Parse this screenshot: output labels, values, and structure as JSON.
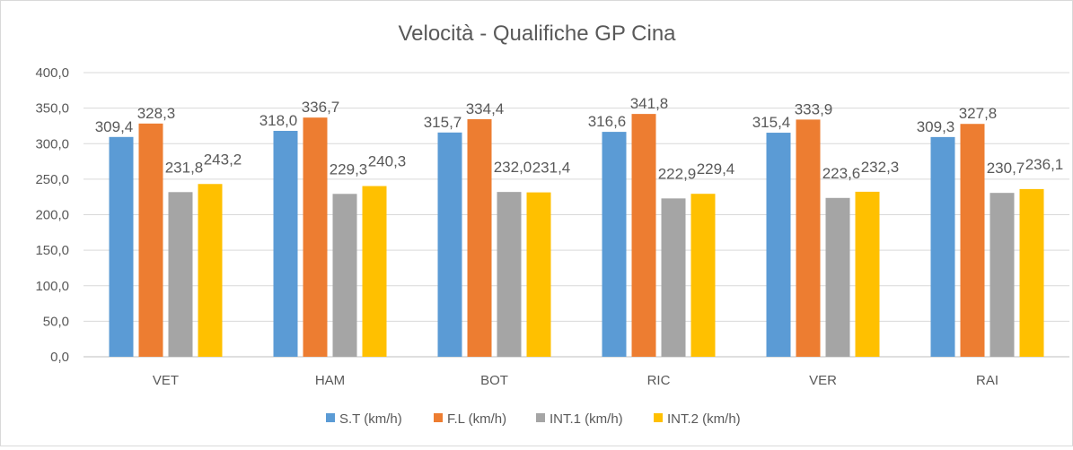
{
  "chart_data": {
    "type": "bar",
    "title": "Velocità - Qualifiche GP Cina",
    "xlabel": "",
    "ylabel": "",
    "ylim": [
      0,
      400
    ],
    "yticks": [
      "0,0",
      "50,0",
      "100,0",
      "150,0",
      "200,0",
      "250,0",
      "300,0",
      "350,0",
      "400,0"
    ],
    "grid": true,
    "legend_position": "bottom",
    "categories": [
      "VET",
      "HAM",
      "BOT",
      "RIC",
      "VER",
      "RAI"
    ],
    "series": [
      {
        "name": "S.T (km/h)",
        "color": "#5b9bd5",
        "values": [
          309.4,
          318.0,
          315.7,
          316.6,
          315.4,
          309.3
        ],
        "labels": [
          "309,4",
          "318,0",
          "315,7",
          "316,6",
          "315,4",
          "309,3"
        ]
      },
      {
        "name": "F.L (km/h)",
        "color": "#ed7d31",
        "values": [
          328.3,
          336.7,
          334.4,
          341.8,
          333.9,
          327.8
        ],
        "labels": [
          "328,3",
          "336,7",
          "334,4",
          "341,8",
          "333,9",
          "327,8"
        ]
      },
      {
        "name": "INT.1 (km/h)",
        "color": "#a5a5a5",
        "values": [
          231.8,
          229.3,
          232.0,
          222.9,
          223.6,
          230.7
        ],
        "labels": [
          "231,8",
          "229,3",
          "232,0",
          "222,9",
          "223,6",
          "230,7"
        ]
      },
      {
        "name": "INT.2 (km/h)",
        "color": "#ffc000",
        "values": [
          243.2,
          240.3,
          231.4,
          229.4,
          232.3,
          236.1
        ],
        "labels": [
          "243,2",
          "240,3",
          "231,4",
          "229,4",
          "232,3",
          "236,1"
        ]
      }
    ]
  }
}
